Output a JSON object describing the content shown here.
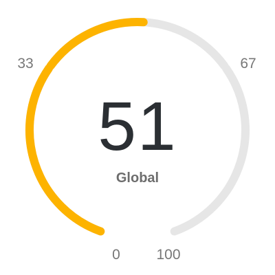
{
  "gauge": {
    "value": "51",
    "label": "Global",
    "value_fraction": 0.51,
    "ticks": {
      "min": "0",
      "low": "33",
      "high": "67",
      "max": "100"
    }
  },
  "colors": {
    "fill": "#FDB300",
    "track": "#E6E6E6"
  }
}
